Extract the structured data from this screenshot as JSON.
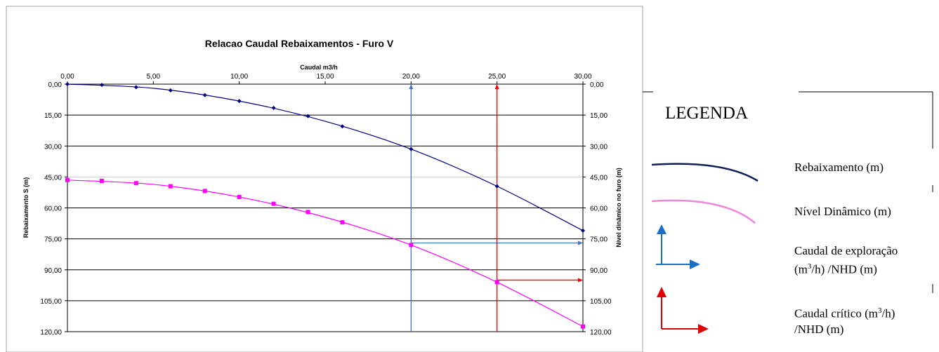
{
  "chart_data": {
    "type": "line",
    "title": "Relacao Caudal Rebaixamentos - Furo V",
    "xlabel": "Caudal m3/h",
    "ylabel_left": "Rebaixamento S (m)",
    "ylabel_right": "Nível dinâmico no furo (m)",
    "x_tick_labels": [
      "0,00",
      "5,00",
      "10,00",
      "15,00",
      "20,00",
      "25,00",
      "30,00"
    ],
    "y_tick_labels": [
      "0,00",
      "15,00",
      "30,00",
      "45,00",
      "60,00",
      "75,00",
      "90,00",
      "105,00",
      "120,00"
    ],
    "xlim": [
      0,
      30
    ],
    "ylim": [
      0,
      120
    ],
    "y_inverted": true,
    "x_axis_position": "top",
    "grid": true,
    "series": [
      {
        "name": "Rebaixamento (m)",
        "color": "#000080",
        "marker": "diamond",
        "x": [
          0,
          2,
          4,
          6,
          8,
          10,
          12,
          14,
          16
        ],
        "y": [
          0,
          0.4,
          1.5,
          3.0,
          5.3,
          8.2,
          11.5,
          15.5,
          20.5
        ]
      },
      {
        "name": "Nível Dinâmico (m)",
        "color": "#ff00ff",
        "marker": "square",
        "x": [
          0,
          2,
          4,
          6,
          8,
          10,
          12,
          14,
          16
        ],
        "y": [
          46.5,
          46.9,
          48.0,
          49.5,
          51.8,
          54.7,
          58.0,
          62.0,
          67.0
        ]
      }
    ],
    "trend_curves": [
      {
        "series": "Rebaixamento (m)",
        "x": [
          0,
          5,
          10,
          15,
          20,
          25,
          30
        ],
        "y": [
          0,
          2.0,
          8.2,
          18.0,
          31.5,
          49.5,
          71.0
        ]
      },
      {
        "series": "Nível Dinâmico (m)",
        "x": [
          0,
          5,
          10,
          15,
          20,
          25,
          30
        ],
        "y": [
          46.5,
          48.6,
          54.7,
          64.5,
          78.0,
          96.0,
          117.5
        ]
      }
    ],
    "markers_end": [
      {
        "series": "Rebaixamento (m)",
        "x": 20,
        "y": 31.5
      },
      {
        "series": "Rebaixamento (m)",
        "x": 25,
        "y": 49.5
      },
      {
        "series": "Rebaixamento (m)",
        "x": 30,
        "y": 71.0
      },
      {
        "series": "Nível Dinâmico (m)",
        "x": 20,
        "y": 78.0
      },
      {
        "series": "Nível Dinâmico (m)",
        "x": 25,
        "y": 96.0
      },
      {
        "series": "Nível Dinâmico (m)",
        "x": 30,
        "y": 117.5
      }
    ],
    "annotations": [
      {
        "name": "Caudal de exploração",
        "color": "#4472c4",
        "x": 20,
        "nhd": 77.0
      },
      {
        "name": "Caudal crítico",
        "color": "#ff0000",
        "x": 25,
        "nhd": 95.0
      }
    ]
  },
  "legend": {
    "title": "LEGENDA",
    "items": [
      {
        "label": "Rebaixamento (m)",
        "color": "#0d1f55"
      },
      {
        "label": "Nível Dinâmico (m)",
        "color": "#f086d8"
      },
      {
        "label": "Caudal de exploração",
        "label_line2_pre": "(m",
        "label_line2_sup": "3",
        "label_line2_post": "/h) /NHD (m)",
        "color": "#1a6fc4"
      },
      {
        "label": "Caudal crítico (m",
        "label_sup": "3",
        "label_post": "/h)",
        "label_line2": "/NHD (m)",
        "color": "#e00000"
      }
    ]
  }
}
